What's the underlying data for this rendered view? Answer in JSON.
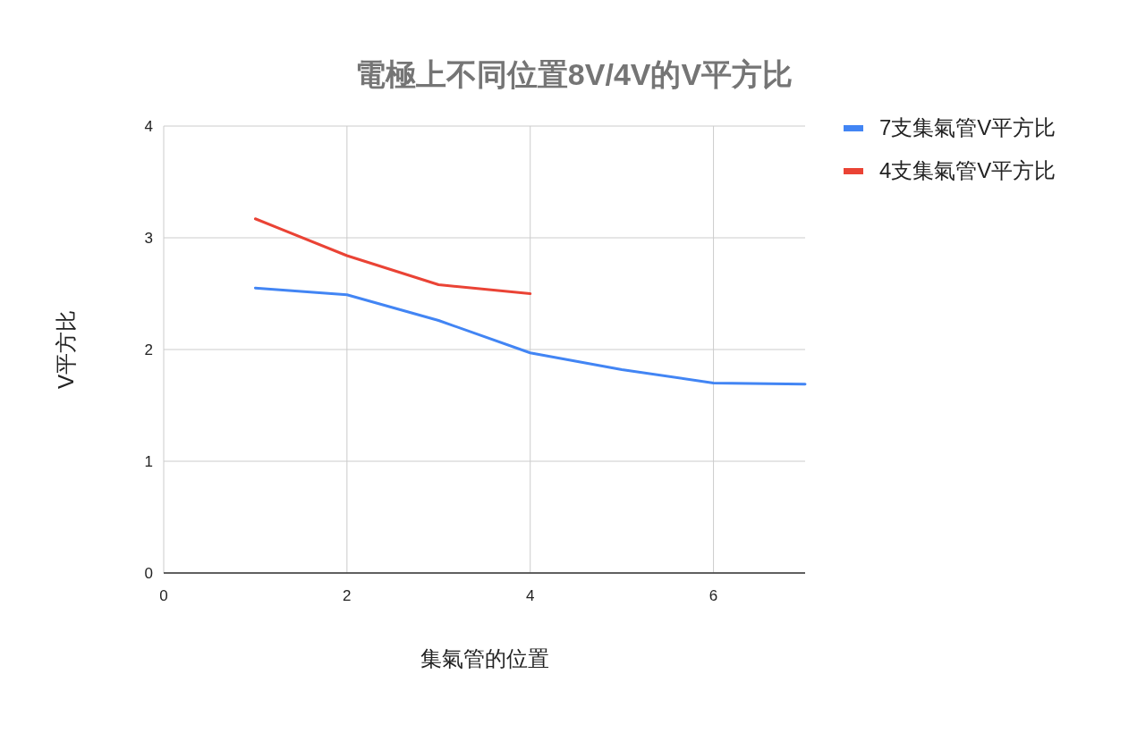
{
  "chart_data": {
    "type": "line",
    "title": "電極上不同位置8V/4V的V平方比",
    "xlabel": "集氣管的位置",
    "ylabel": "V平方比",
    "x": [
      1,
      2,
      3,
      4,
      5,
      6,
      7
    ],
    "series": [
      {
        "name": "7支集氣管V平方比",
        "color": "#4285f4",
        "values": [
          2.55,
          2.49,
          2.26,
          1.97,
          1.82,
          1.7,
          1.69
        ]
      },
      {
        "name": "4支集氣管V平方比",
        "color": "#ea4335",
        "values": [
          3.17,
          2.84,
          2.58,
          2.5,
          null,
          null,
          null
        ]
      }
    ],
    "xlim": [
      0,
      7
    ],
    "xticks": [
      0,
      2,
      4,
      6
    ],
    "ylim": [
      0,
      4
    ],
    "yticks": [
      0,
      1,
      2,
      3,
      4
    ],
    "grid": true,
    "legend": "right",
    "marker": "none",
    "line_style": "solid"
  }
}
